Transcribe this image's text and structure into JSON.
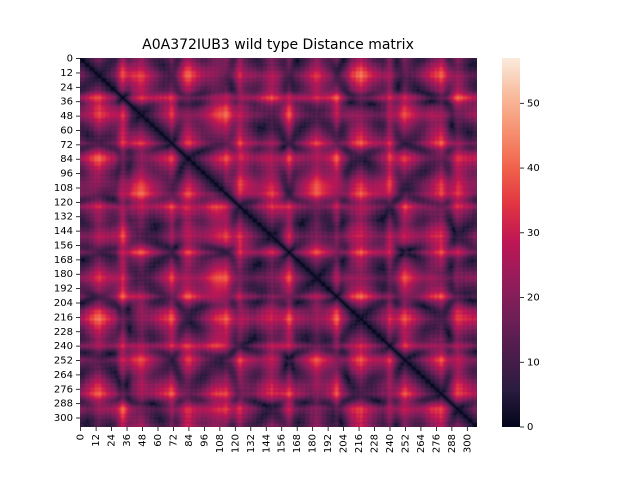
{
  "chart_data": {
    "type": "heatmap",
    "title": "A0A372IUB3 wild type Distance matrix",
    "xlabel": "",
    "ylabel": "",
    "n_residues": 308,
    "x_tick_labels": [
      "0",
      "12",
      "24",
      "36",
      "48",
      "60",
      "72",
      "84",
      "96",
      "108",
      "120",
      "132",
      "144",
      "156",
      "168",
      "180",
      "192",
      "204",
      "216",
      "228",
      "240",
      "252",
      "264",
      "276",
      "288",
      "300"
    ],
    "y_tick_labels": [
      "0",
      "12",
      "24",
      "36",
      "48",
      "60",
      "72",
      "84",
      "96",
      "108",
      "120",
      "132",
      "144",
      "156",
      "168",
      "180",
      "192",
      "204",
      "216",
      "228",
      "240",
      "252",
      "264",
      "276",
      "288",
      "300"
    ],
    "colorbar": {
      "ticks": [
        "0",
        "10",
        "20",
        "30",
        "40",
        "50"
      ],
      "range": [
        0,
        57
      ],
      "colormap": "rocket",
      "stops": [
        "#03051a",
        "#2a1c3f",
        "#4c1d4b",
        "#701f57",
        "#961c5b",
        "#bd1655",
        "#e13342",
        "#f1614a",
        "#f6906f",
        "#f8bc9d",
        "#faebdd"
      ]
    }
  }
}
